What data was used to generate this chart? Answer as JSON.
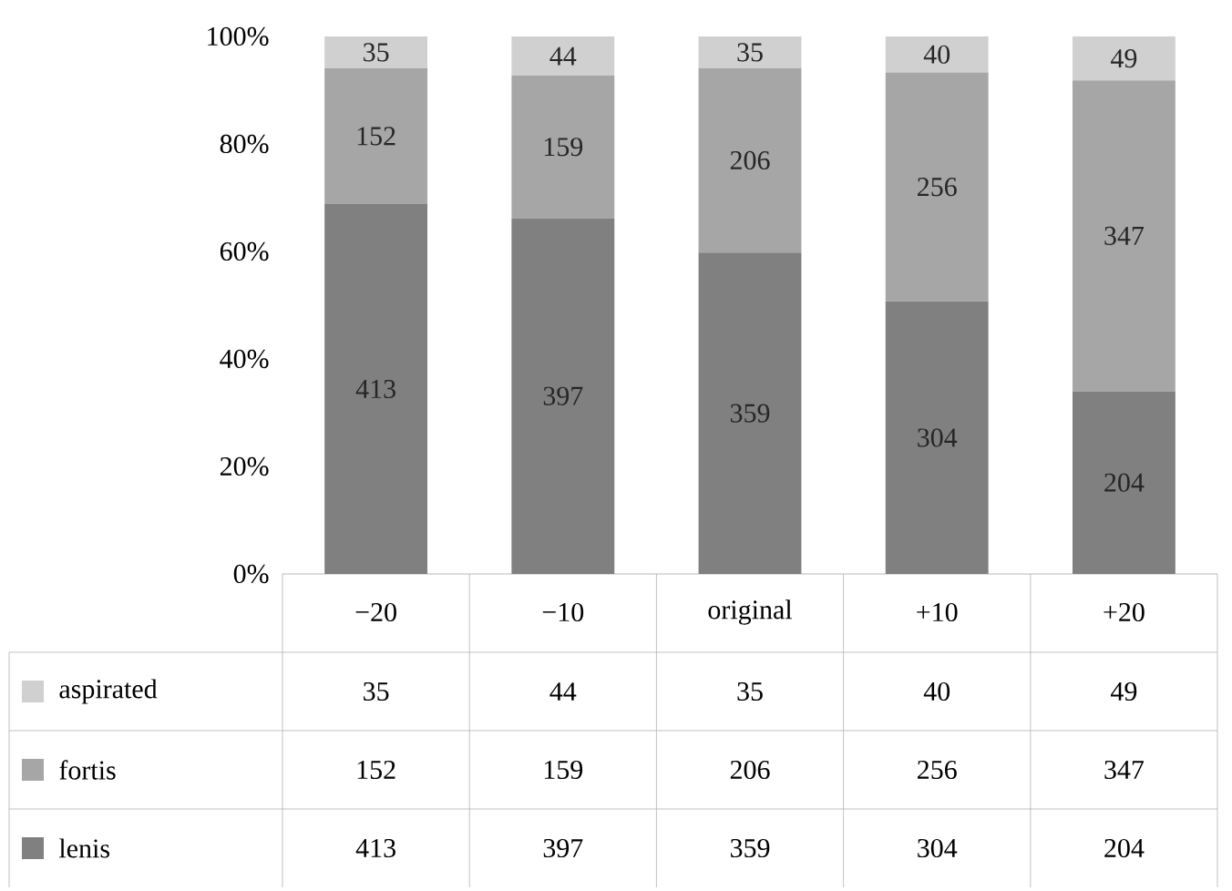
{
  "chart_data": {
    "type": "bar",
    "stacked": true,
    "categories": [
      "−20",
      "−10",
      "original",
      "+10",
      "+20"
    ],
    "series": [
      {
        "name": "lenis",
        "color": "#808080",
        "values": [
          68.8,
          66.2,
          59.8,
          50.7,
          34.0
        ]
      },
      {
        "name": "fortis",
        "color": "#a6a6a6",
        "values": [
          25.3,
          26.5,
          34.3,
          42.6,
          57.8
        ]
      },
      {
        "name": "aspirated",
        "color": "#d0d0d0",
        "values": [
          5.9,
          7.3,
          5.9,
          6.7,
          8.2
        ]
      }
    ],
    "ylim": [
      0,
      100
    ],
    "yticks": [
      {
        "value": 0,
        "label": "0%"
      },
      {
        "value": 20,
        "label": "20%"
      },
      {
        "value": 40,
        "label": "40%"
      },
      {
        "value": 60,
        "label": "60%"
      },
      {
        "value": 80,
        "label": "80%"
      },
      {
        "value": 100,
        "label": "100%"
      }
    ],
    "annotations": [
      "413",
      "397",
      "359",
      "304",
      "204",
      "152",
      "159",
      "206",
      "256",
      "347",
      "35",
      "44",
      "35",
      "40",
      "49"
    ],
    "legend": "bottom"
  }
}
